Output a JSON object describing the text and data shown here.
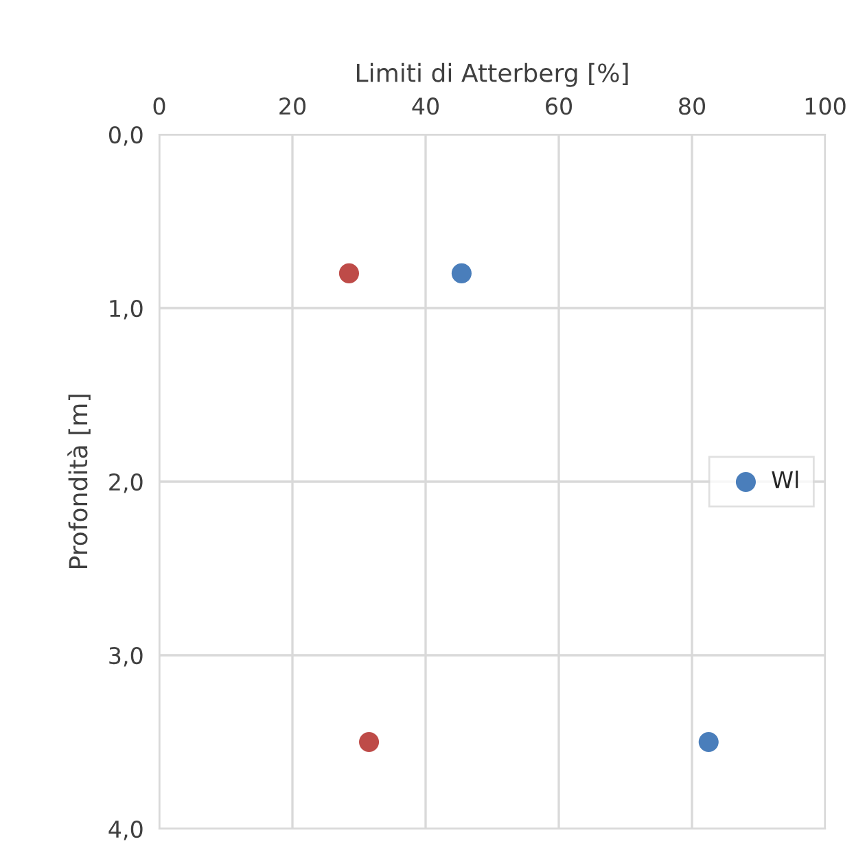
{
  "chart_data": {
    "type": "scatter",
    "xlabel": "Limiti di Atterberg [%]",
    "ylabel": "Profondità [m]",
    "series": [
      {
        "name": "Wl",
        "color": "#4a7ebb",
        "x": [
          45.4,
          82.5
        ],
        "values": [
          0.8,
          3.5
        ]
      },
      {
        "color": "#be4b48",
        "x": [
          28.5,
          31.5
        ],
        "values": [
          0.8,
          3.5
        ]
      }
    ],
    "xlim": [
      0,
      100
    ],
    "xticks": [
      0,
      20,
      40,
      60,
      80,
      100
    ],
    "ylim": [
      4.0,
      0.0
    ],
    "yticks": [
      {
        "value": 0,
        "label": "0,0"
      },
      {
        "value": 1,
        "label": "1,0"
      },
      {
        "value": 2,
        "label": "2,0"
      },
      {
        "value": 3,
        "label": "3,0"
      },
      {
        "value": 4,
        "label": "4,0"
      }
    ],
    "grid": true,
    "legend": "right",
    "marker": "circle"
  }
}
